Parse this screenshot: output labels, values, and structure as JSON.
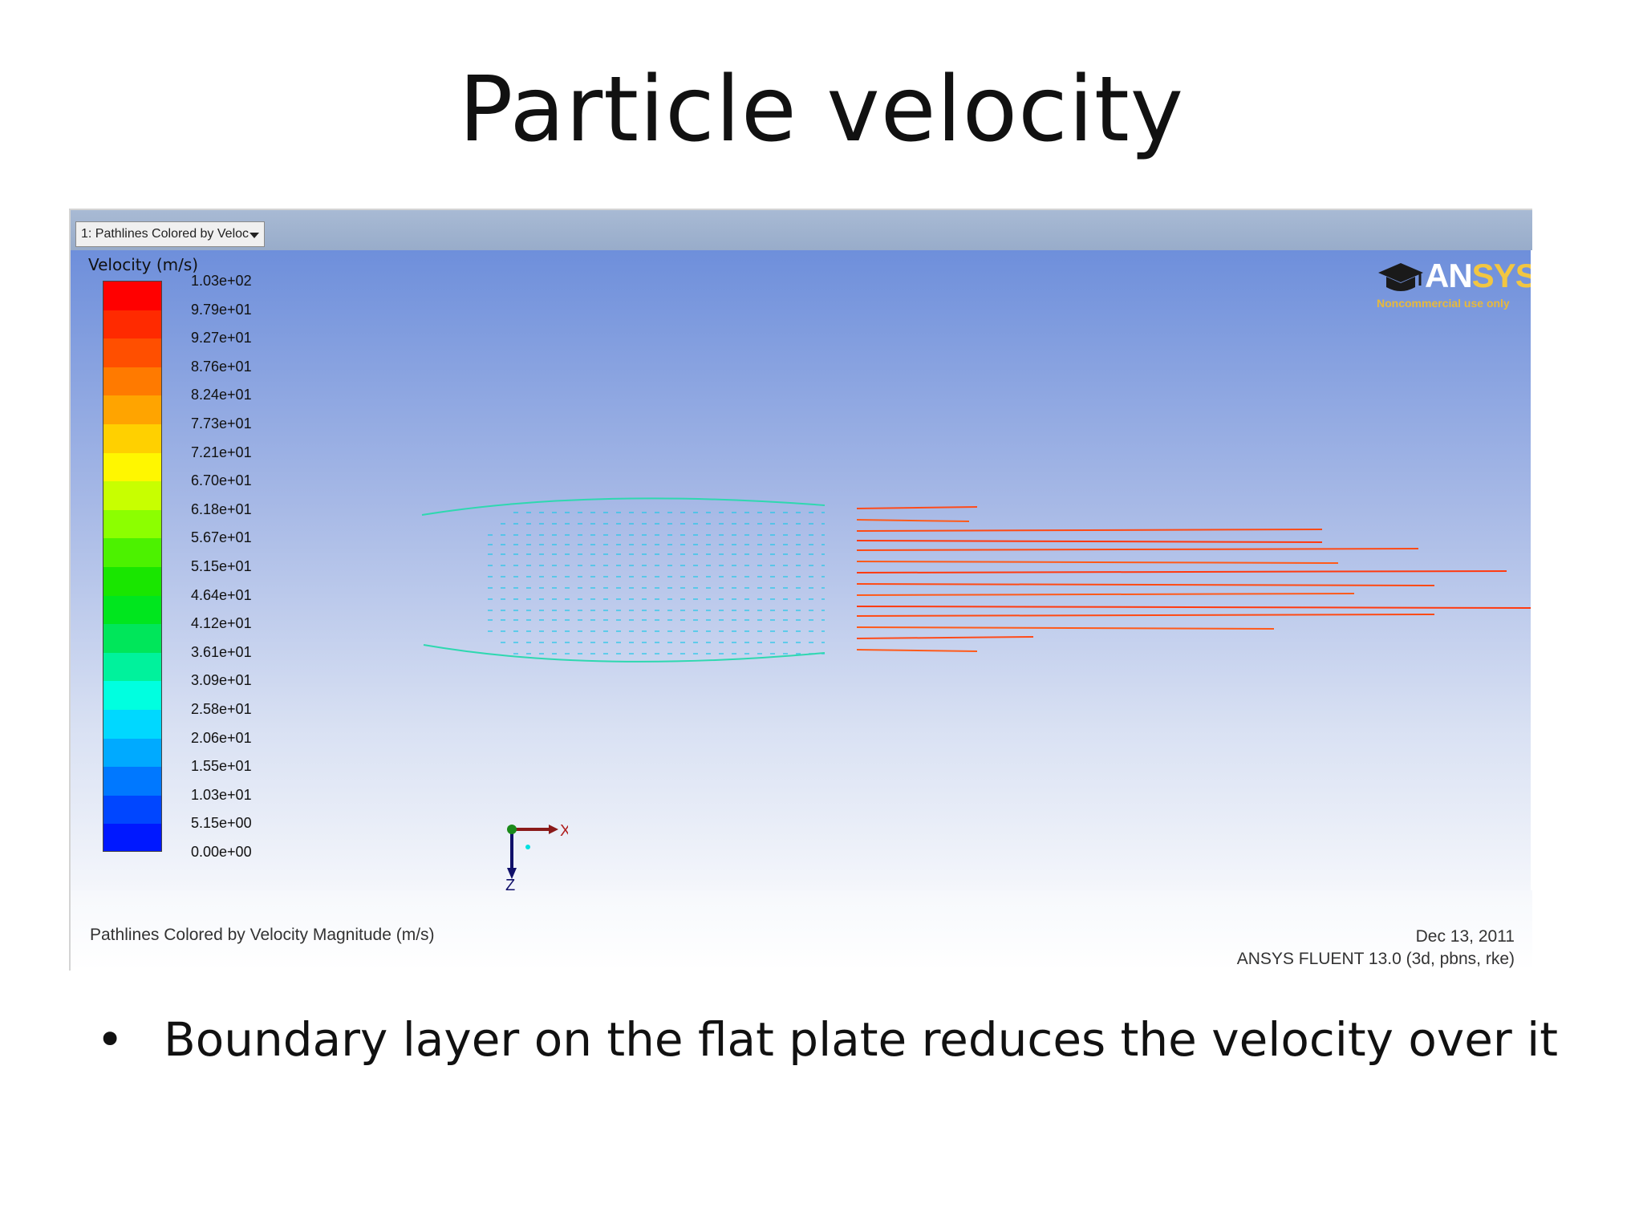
{
  "slide": {
    "title": "Particle velocity",
    "bullet": "Boundary layer on the flat plate reduces the velocity over it"
  },
  "window": {
    "view_select_label": "1: Pathlines Colored by Veloc",
    "footer_left": "Pathlines Colored by Velocity Magnitude (m/s)",
    "footer_date": "Dec 13, 2011",
    "footer_version": "ANSYS FLUENT 13.0 (3d, pbns, rke)"
  },
  "legend": {
    "title": "Velocity (m/s)",
    "ticks": [
      "1.03e+02",
      "9.79e+01",
      "9.27e+01",
      "8.76e+01",
      "8.24e+01",
      "7.73e+01",
      "7.21e+01",
      "6.70e+01",
      "6.18e+01",
      "5.67e+01",
      "5.15e+01",
      "4.64e+01",
      "4.12e+01",
      "3.61e+01",
      "3.09e+01",
      "2.58e+01",
      "2.06e+01",
      "1.55e+01",
      "1.03e+01",
      "5.15e+00",
      "0.00e+00"
    ],
    "colors": [
      "#ff0000",
      "#ff2a00",
      "#ff4f00",
      "#ff7a00",
      "#ffa400",
      "#ffd000",
      "#fff700",
      "#c8ff00",
      "#8cff00",
      "#4cf200",
      "#19e600",
      "#00e61e",
      "#00e65a",
      "#00f29c",
      "#00ffe0",
      "#00d8ff",
      "#00aaff",
      "#0078ff",
      "#0046ff",
      "#0018ff"
    ]
  },
  "logo": {
    "brand_main": "AN",
    "brand_accent": "SYS",
    "tagline": "Noncommercial use only"
  },
  "axes": {
    "x_label": "X",
    "z_label": "Z"
  }
}
